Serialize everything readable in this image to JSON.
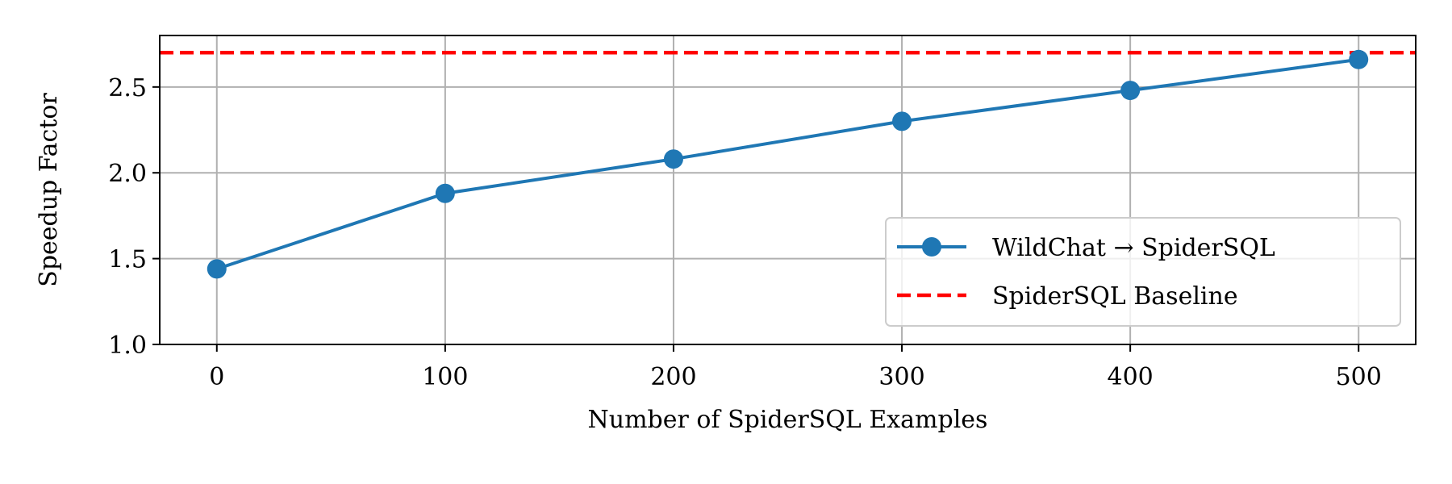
{
  "chart_data": {
    "type": "line",
    "x": [
      0,
      100,
      200,
      300,
      400,
      500
    ],
    "series": [
      {
        "name": "WildChat → SpiderSQL",
        "values": [
          1.44,
          1.88,
          2.08,
          2.3,
          2.48,
          2.66
        ],
        "color": "#1f77b4",
        "style": "solid-with-markers"
      }
    ],
    "baseline": {
      "name": "SpiderSQL Baseline",
      "value": 2.7,
      "color": "#ff0000",
      "style": "dashed"
    },
    "xlabel": "Number of SpiderSQL Examples",
    "ylabel": "Speedup Factor",
    "xticks": [
      "0",
      "100",
      "200",
      "300",
      "400",
      "500"
    ],
    "xtick_values": [
      0,
      100,
      200,
      300,
      400,
      500
    ],
    "yticks": [
      "1.0",
      "1.5",
      "2.0",
      "2.5"
    ],
    "ytick_values": [
      1.0,
      1.5,
      2.0,
      2.5
    ],
    "xlim": [
      -25,
      525
    ],
    "ylim": [
      1.0,
      2.8
    ],
    "grid": true,
    "legend_position": "lower-right"
  }
}
